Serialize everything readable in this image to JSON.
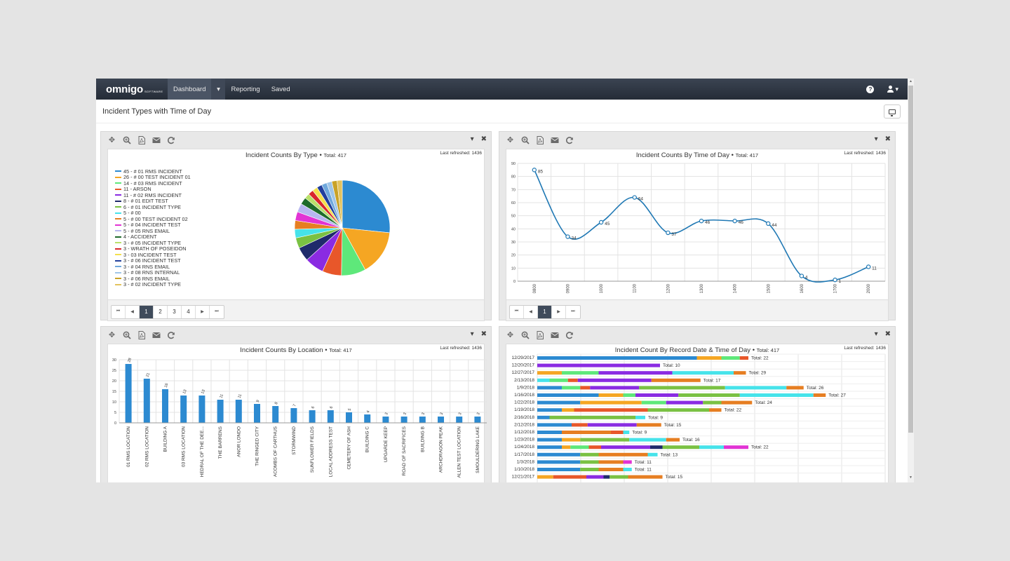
{
  "app": {
    "logo": "omnigo",
    "logo_sub": "SOFTWARE",
    "nav": [
      {
        "label": "Dashboard",
        "active": true
      },
      {
        "label": "Reporting",
        "active": false
      },
      {
        "label": "Saved",
        "active": false
      }
    ],
    "nav_caret": "▾",
    "user_caret": "▾",
    "help_glyph": "?"
  },
  "page": {
    "title": "Incident Types with Time of Day"
  },
  "panels": {
    "by_type": {
      "title": "Incident Counts By Type",
      "total": "Total: 417",
      "refreshed": "Last refreshed: 1436",
      "pages": [
        "1",
        "2",
        "3",
        "4"
      ],
      "active_page": "1"
    },
    "by_time": {
      "title": "Incident Counts By Time of Day",
      "total": "Total: 417",
      "refreshed": "Last refreshed: 1436",
      "pages": [
        "1"
      ],
      "active_page": "1"
    },
    "by_location": {
      "title": "Incident Counts By Location",
      "total": "Total: 417",
      "refreshed": "Last refreshed: 1436"
    },
    "by_record_date": {
      "title": "Incident Count By Record Date & Time of Day",
      "total": "Total: 417",
      "refreshed": "Last refreshed: 1436"
    }
  },
  "icons": {
    "toolbar": [
      "move-icon",
      "zoom-icon",
      "pdf-icon",
      "email-icon",
      "refresh-icon"
    ],
    "panel_right": [
      "caret-down-icon",
      "close-icon"
    ]
  },
  "chart_data": [
    {
      "type": "pie",
      "id": "by_type",
      "title": "Incident Counts By Type",
      "legend_position": "left",
      "legend": [
        {
          "label": "45 - # 01 RMS INCIDENT",
          "value": 45,
          "color": "#2c8ad1"
        },
        {
          "label": "26 - # 00 TEST INCIDENT 01",
          "value": 26,
          "color": "#f5a623"
        },
        {
          "label": "14 - # 03 RMS INCIDENT",
          "value": 14,
          "color": "#5ee87a"
        },
        {
          "label": "11 - ARSON",
          "value": 11,
          "color": "#e8572a"
        },
        {
          "label": "11 - # 02 RMS INCIDENT",
          "value": 11,
          "color": "#8a2be2"
        },
        {
          "label": "8 - # 01 EDIT TEST",
          "value": 8,
          "color": "#1f2a6b"
        },
        {
          "label": "6 - # 01 INCIDENT TYPE",
          "value": 6,
          "color": "#7ac143"
        },
        {
          "label": "5 - # 00",
          "value": 5,
          "color": "#46e3ea"
        },
        {
          "label": "5 - # 00 TEST INCIDENT 02",
          "value": 5,
          "color": "#e67e22"
        },
        {
          "label": "5 - # 04 INCIDENT TEST",
          "value": 5,
          "color": "#e233d4"
        },
        {
          "label": "5 - # 05 RNS EMAIL",
          "value": 5,
          "color": "#b7b7f0"
        },
        {
          "label": "4 - ACCIDENT",
          "value": 4,
          "color": "#1e6b2a"
        },
        {
          "label": "3 - # 05 INCIDENT TYPE",
          "value": 3,
          "color": "#b9e06a"
        },
        {
          "label": "3 - WRATH OF POSEIDON",
          "value": 3,
          "color": "#d9262c"
        },
        {
          "label": "3 - 03 INCIDENT TEST",
          "value": 3,
          "color": "#f4e04d"
        },
        {
          "label": "3 - # 06 INCIDENT TEST",
          "value": 3,
          "color": "#223f9c"
        },
        {
          "label": "3 - # 04 RNS EMAIL",
          "value": 3,
          "color": "#6fa8dc"
        },
        {
          "label": "3 - # 08 RNS INTERNAL",
          "value": 3,
          "color": "#9fc5e8"
        },
        {
          "label": "3 - # 06 RNS EMAIL",
          "value": 3,
          "color": "#c9a227"
        },
        {
          "label": "3 - # 02 INCIDENT TYPE",
          "value": 3,
          "color": "#e3c35e"
        }
      ]
    },
    {
      "type": "line",
      "id": "by_time",
      "title": "Incident Counts By Time of Day",
      "x": [
        "0800",
        "0900",
        "1000",
        "1100",
        "1200",
        "1300",
        "1400",
        "1500",
        "1600",
        "1700",
        "2000"
      ],
      "values": [
        85,
        34,
        45,
        64,
        37,
        46,
        46,
        44,
        4,
        1,
        11
      ],
      "ylim": [
        0,
        90
      ],
      "yticks": [
        0,
        10,
        20,
        30,
        40,
        50,
        60,
        70,
        80,
        90
      ],
      "grid": true,
      "color": "#1f78b4"
    },
    {
      "type": "bar",
      "id": "by_location",
      "title": "Incident Counts By Location",
      "categories": [
        "01 RMS LOCATION",
        "02 RMS LOCATION",
        "BUILDING A",
        "03 RMS LOCATION",
        "HEDRAL OF THE DEE...",
        "THE BARRENS",
        "ANOR LONDO",
        "THE RINGED CITY",
        "ACOMBS OF CARTHUS",
        "STORMWIND",
        "SUNFLOWER FIELDS",
        "LOCAL ADDRESS TEST",
        "CEMETERY OF ASH",
        "BUILDING C",
        "UPGARDE KEEP",
        "ROAD OF SACRIFICES",
        "BUILDING B",
        "ARCHDRAGON PEAK",
        "ALLEN TEST LOCATION",
        "SMOULDERING LAKE"
      ],
      "values": [
        28,
        21,
        16,
        13,
        13,
        11,
        11,
        9,
        8,
        7,
        6,
        6,
        5,
        4,
        3,
        3,
        3,
        3,
        3,
        3
      ],
      "ylim": [
        0,
        30
      ],
      "yticks": [
        0,
        5,
        10,
        15,
        20,
        25,
        30
      ],
      "grid": true,
      "color": "#2c8ad1"
    },
    {
      "type": "bar",
      "orientation": "horizontal-stacked",
      "id": "by_record_date",
      "title": "Incident Count By Record Date & Time of Day",
      "series_colors": [
        "#2c8ad1",
        "#f5a623",
        "#5ee87a",
        "#e8572a",
        "#8a2be2",
        "#1f2a6b",
        "#7ac143",
        "#46e3ea",
        "#e67e22",
        "#e233d4"
      ],
      "rows": [
        {
          "date": "12/29/2017",
          "label": "Total: 22",
          "segments": [
            [
              0,
              13
            ],
            [
              1,
              2
            ],
            [
              2,
              1.5
            ],
            [
              3,
              0.7
            ]
          ]
        },
        {
          "date": "12/20/2017",
          "label": "Total: 10",
          "segments": [
            [
              4,
              10
            ]
          ]
        },
        {
          "date": "12/27/2017",
          "label": "Total: 29",
          "segments": [
            [
              1,
              2
            ],
            [
              2,
              3
            ],
            [
              4,
              6
            ],
            [
              7,
              5
            ],
            [
              8,
              1
            ]
          ]
        },
        {
          "date": "2/13/2018",
          "label": "Total: 17",
          "segments": [
            [
              7,
              1
            ],
            [
              2,
              1.5
            ],
            [
              3,
              0.8
            ],
            [
              4,
              6
            ],
            [
              8,
              4
            ]
          ]
        },
        {
          "date": "1/9/2018",
          "label": "Total: 26",
          "segments": [
            [
              0,
              2
            ],
            [
              2,
              1.5
            ],
            [
              3,
              0.8
            ],
            [
              4,
              4
            ],
            [
              6,
              7
            ],
            [
              7,
              5
            ],
            [
              8,
              1.4
            ]
          ]
        },
        {
          "date": "1/16/2018",
          "label": "Total: 27",
          "segments": [
            [
              0,
              5
            ],
            [
              1,
              2
            ],
            [
              2,
              1
            ],
            [
              4,
              3.5
            ],
            [
              6,
              5
            ],
            [
              7,
              6
            ],
            [
              8,
              1
            ]
          ]
        },
        {
          "date": "1/22/2018",
          "label": "Total: 24",
          "segments": [
            [
              0,
              3.5
            ],
            [
              1,
              5
            ],
            [
              2,
              2
            ],
            [
              4,
              3
            ],
            [
              6,
              1.5
            ],
            [
              8,
              2.5
            ]
          ]
        },
        {
          "date": "1/19/2018",
          "label": "Total: 22",
          "segments": [
            [
              0,
              2
            ],
            [
              1,
              1
            ],
            [
              3,
              6
            ],
            [
              6,
              5
            ],
            [
              8,
              1
            ]
          ]
        },
        {
          "date": "2/16/2018",
          "label": "Total: 9",
          "segments": [
            [
              0,
              1
            ],
            [
              6,
              7
            ],
            [
              7,
              0.8
            ]
          ]
        },
        {
          "date": "2/12/2018",
          "label": "Total: 15",
          "segments": [
            [
              0,
              2.8
            ],
            [
              3,
              1.3
            ],
            [
              4,
              4
            ],
            [
              8,
              2
            ]
          ]
        },
        {
          "date": "1/12/2018",
          "label": "Total: 9",
          "segments": [
            [
              0,
              2
            ],
            [
              8,
              4
            ],
            [
              3,
              1
            ],
            [
              7,
              0.5
            ]
          ]
        },
        {
          "date": "1/23/2018",
          "label": "Total: 16",
          "segments": [
            [
              0,
              2
            ],
            [
              1,
              1.5
            ],
            [
              6,
              4
            ],
            [
              7,
              3
            ],
            [
              8,
              1.1
            ]
          ]
        },
        {
          "date": "1/24/2018",
          "label": "Total: 22",
          "segments": [
            [
              0,
              2
            ],
            [
              1,
              0.7
            ],
            [
              2,
              1.5
            ],
            [
              3,
              1
            ],
            [
              4,
              4
            ],
            [
              5,
              1
            ],
            [
              6,
              3
            ],
            [
              7,
              2
            ],
            [
              9,
              2
            ]
          ]
        },
        {
          "date": "1/17/2018",
          "label": "Total: 13",
          "segments": [
            [
              0,
              3.5
            ],
            [
              6,
              1.5
            ],
            [
              8,
              4
            ],
            [
              7,
              0.8
            ]
          ]
        },
        {
          "date": "1/3/2018",
          "label": "Total: 11",
          "segments": [
            [
              0,
              3.5
            ],
            [
              6,
              1.5
            ],
            [
              8,
              2
            ],
            [
              9,
              0.7
            ]
          ]
        },
        {
          "date": "1/10/2018",
          "label": "Total: 11",
          "segments": [
            [
              0,
              3.5
            ],
            [
              6,
              1.5
            ],
            [
              8,
              2
            ],
            [
              7,
              0.7
            ]
          ]
        },
        {
          "date": "12/21/2017",
          "label": "Total: 15",
          "segments": [
            [
              1,
              1.3
            ],
            [
              3,
              2.7
            ],
            [
              4,
              1.4
            ],
            [
              5,
              0.5
            ],
            [
              6,
              1.5
            ],
            [
              8,
              2.8
            ]
          ]
        }
      ]
    }
  ]
}
